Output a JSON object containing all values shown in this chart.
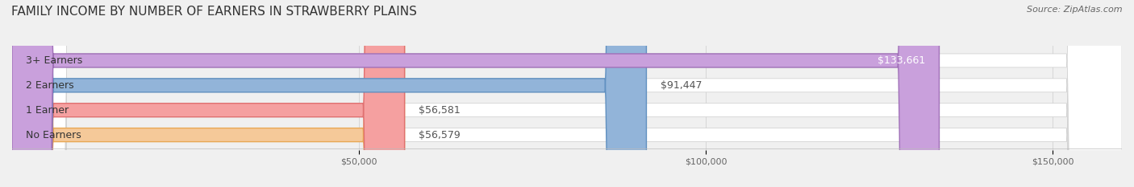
{
  "title": "FAMILY INCOME BY NUMBER OF EARNERS IN STRAWBERRY PLAINS",
  "source": "Source: ZipAtlas.com",
  "categories": [
    "No Earners",
    "1 Earner",
    "2 Earners",
    "3+ Earners"
  ],
  "values": [
    56579,
    56581,
    91447,
    133661
  ],
  "labels": [
    "$56,579",
    "$56,581",
    "$91,447",
    "$133,661"
  ],
  "bar_colors": [
    "#f5c999",
    "#f5a0a0",
    "#92b4d9",
    "#c9a0dc"
  ],
  "bar_edge_colors": [
    "#e8a855",
    "#e07070",
    "#6090c0",
    "#a070b8"
  ],
  "background_color": "#f0f0f0",
  "bar_bg_color": "#e8e8e8",
  "xlim": [
    0,
    160000
  ],
  "xticks": [
    50000,
    100000,
    150000
  ],
  "xtick_labels": [
    "$50,000",
    "$100,000",
    "$150,000"
  ],
  "title_fontsize": 11,
  "source_fontsize": 8,
  "label_fontsize": 9,
  "category_fontsize": 9,
  "bar_height": 0.55,
  "fig_width": 14.06,
  "fig_height": 2.33
}
